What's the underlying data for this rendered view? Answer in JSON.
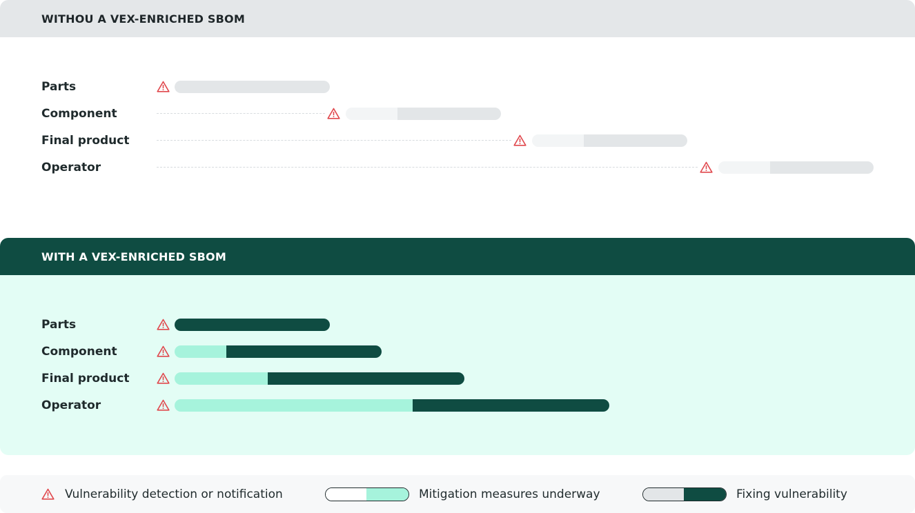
{
  "without": {
    "title": "WITHOU A VEX-ENRICHED SBOM",
    "rows": [
      {
        "label": "Parts"
      },
      {
        "label": "Component"
      },
      {
        "label": "Final product"
      },
      {
        "label": "Operator"
      }
    ]
  },
  "with": {
    "title": "WITH A VEX-ENRICHED SBOM",
    "rows": [
      {
        "label": "Parts"
      },
      {
        "label": "Component"
      },
      {
        "label": "Final product"
      },
      {
        "label": "Operator"
      }
    ]
  },
  "legend": {
    "detection": "Vulnerability detection or notification",
    "mitigation": "Mitigation measures underway",
    "fixing": "Fixing vulnerability"
  },
  "colors": {
    "warning": "#e0474c",
    "dark_green": "#0f4c42",
    "mint": "#a6f3dc",
    "grey": "#e3e6e8",
    "light_grey": "#f3f5f6",
    "with_background": "#e3fdf5"
  }
}
